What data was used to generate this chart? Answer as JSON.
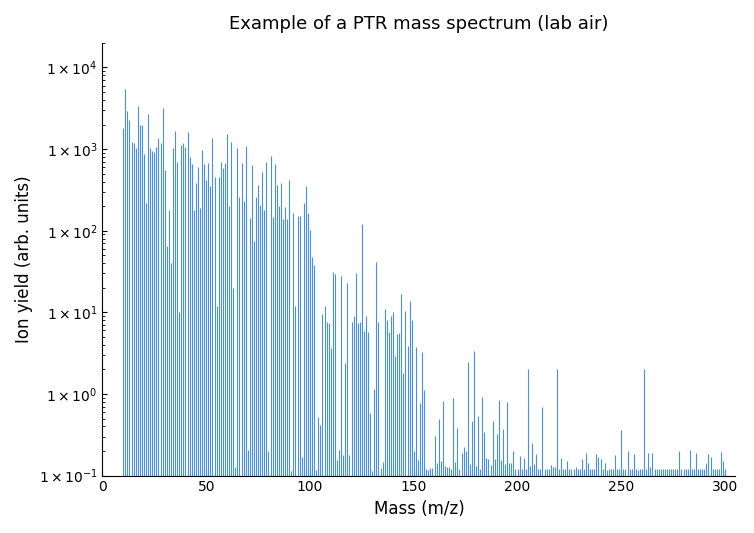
{
  "title": "Example of a PTR mass spectrum (lab air)",
  "xlabel": "Mass (m/z)",
  "ylabel": "Ion yield (arb. units)",
  "bar_color": "#4a90d9",
  "background_color": "#ffffff",
  "ylim": [
    0.1,
    20000
  ],
  "xlim": [
    0,
    305
  ],
  "xticks": [
    0,
    50,
    100,
    150,
    200,
    250,
    300
  ],
  "title_fontsize": 13,
  "seed": 42
}
